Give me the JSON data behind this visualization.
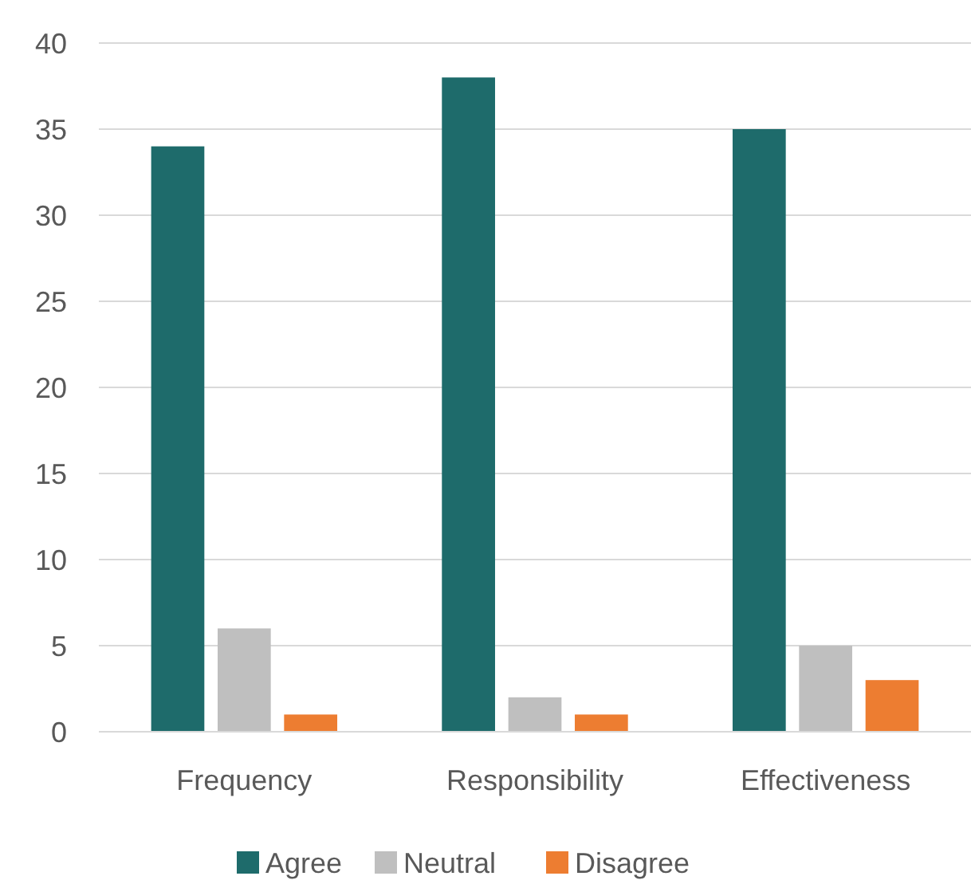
{
  "chart_data": {
    "type": "bar",
    "categories": [
      "Frequency",
      "Responsibility",
      "Effectiveness"
    ],
    "series": [
      {
        "name": "Agree",
        "color": "#1e6b6b",
        "values": [
          34,
          38,
          35
        ]
      },
      {
        "name": "Neutral",
        "color": "#bfbfbf",
        "values": [
          6,
          2,
          5
        ]
      },
      {
        "name": "Disagree",
        "color": "#ed7d31",
        "values": [
          1,
          1,
          3
        ]
      }
    ],
    "ylim": [
      0,
      40
    ],
    "yticks": [
      0,
      5,
      10,
      15,
      20,
      25,
      30,
      35,
      40
    ],
    "grid": "y",
    "legend": "bottom"
  }
}
